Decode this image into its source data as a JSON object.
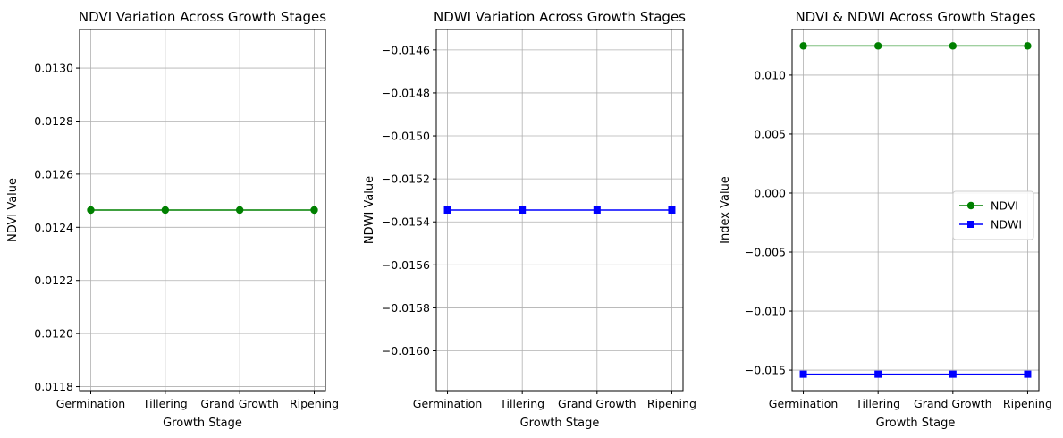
{
  "chart_data": [
    {
      "type": "line",
      "title": "NDVI Variation Across Growth Stages",
      "xlabel": "Growth Stage",
      "ylabel": "NDVI Value",
      "categories": [
        "Germination",
        "Tillering",
        "Grand Growth",
        "Ripening"
      ],
      "series": [
        {
          "values": [
            0.012465,
            0.012465,
            0.012465,
            0.012465
          ],
          "color": "#008000",
          "marker": "circle"
        }
      ],
      "ylim": [
        0.011785,
        0.013145
      ],
      "yticks": [
        0.0118,
        0.012,
        0.0122,
        0.0124,
        0.0126,
        0.0128,
        0.013
      ],
      "ytick_labels": [
        "0.0118",
        "0.0120",
        "0.0122",
        "0.0124",
        "0.0126",
        "0.0128",
        "0.0130"
      ],
      "grid": true
    },
    {
      "type": "line",
      "title": "NDWI Variation Across Growth Stages",
      "xlabel": "Growth Stage",
      "ylabel": "NDWI Value",
      "categories": [
        "Germination",
        "Tillering",
        "Grand Growth",
        "Ripening"
      ],
      "series": [
        {
          "values": [
            -0.015345,
            -0.015345,
            -0.015345,
            -0.015345
          ],
          "color": "#0000ff",
          "marker": "square"
        }
      ],
      "ylim": [
        -0.016185,
        -0.014505
      ],
      "yticks": [
        -0.016,
        -0.0158,
        -0.0156,
        -0.0154,
        -0.0152,
        -0.015,
        -0.0148,
        -0.0146
      ],
      "ytick_labels": [
        "−0.0160",
        "−0.0158",
        "−0.0156",
        "−0.0154",
        "−0.0152",
        "−0.0150",
        "−0.0148",
        "−0.0146"
      ],
      "grid": true
    },
    {
      "type": "line",
      "title": "NDVI & NDWI Across Growth Stages",
      "xlabel": "Growth Stage",
      "ylabel": "Index Value",
      "categories": [
        "Germination",
        "Tillering",
        "Grand Growth",
        "Ripening"
      ],
      "series": [
        {
          "name": "NDVI",
          "values": [
            0.012465,
            0.012465,
            0.012465,
            0.012465
          ],
          "color": "#008000",
          "marker": "circle"
        },
        {
          "name": "NDWI",
          "values": [
            -0.015345,
            -0.015345,
            -0.015345,
            -0.015345
          ],
          "color": "#0000ff",
          "marker": "square"
        }
      ],
      "ylim": [
        -0.016735,
        0.013855
      ],
      "yticks": [
        -0.015,
        -0.01,
        -0.005,
        0.0,
        0.005,
        0.01
      ],
      "ytick_labels": [
        "−0.015",
        "−0.010",
        "−0.005",
        "0.000",
        "0.005",
        "0.010"
      ],
      "grid": true,
      "legend": "center-right"
    }
  ]
}
